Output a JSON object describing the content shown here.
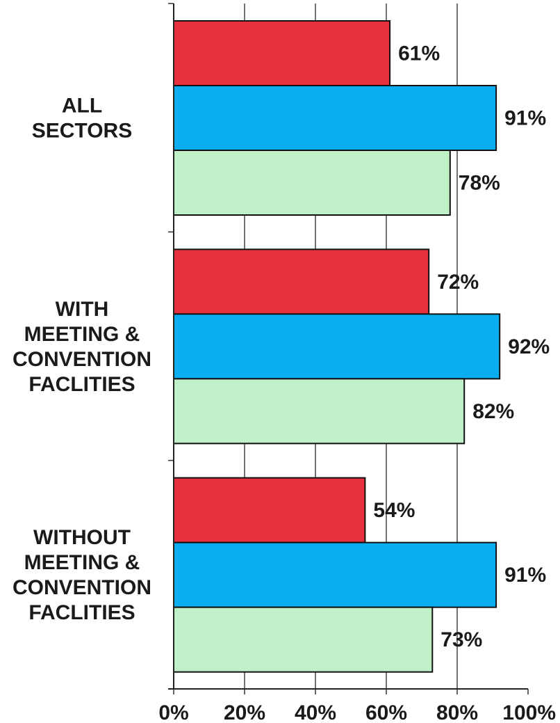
{
  "chart_data": {
    "type": "bar",
    "orientation": "horizontal",
    "title": "",
    "xlabel": "",
    "ylabel": "",
    "xlim": [
      0,
      100
    ],
    "grid": true,
    "legend": "none",
    "categories": [
      {
        "lines": [
          "ALL",
          "SECTORS"
        ]
      },
      {
        "lines": [
          "WITH",
          "MEETING &",
          "CONVENTION",
          "FACLITIES"
        ]
      },
      {
        "lines": [
          "WITHOUT",
          "MEETING &",
          "CONVENTION",
          "FACLITIES"
        ]
      }
    ],
    "series": [
      {
        "color": "#e8313f",
        "values": [
          61,
          72,
          54
        ],
        "labels": [
          "61%",
          "72%",
          "54%"
        ]
      },
      {
        "color": "#0aaef0",
        "values": [
          91,
          92,
          91
        ],
        "labels": [
          "91%",
          "92%",
          "91%"
        ]
      },
      {
        "color": "#c0f0c8",
        "values": [
          78,
          82,
          73
        ],
        "labels": [
          "78%",
          "82%",
          "73%"
        ]
      }
    ],
    "x_ticks": [
      {
        "value": 0,
        "label": "0%"
      },
      {
        "value": 20,
        "label": "20%"
      },
      {
        "value": 40,
        "label": "40%"
      },
      {
        "value": 60,
        "label": "60%"
      },
      {
        "value": 80,
        "label": "80%"
      },
      {
        "value": 100,
        "label": "100%"
      }
    ]
  }
}
